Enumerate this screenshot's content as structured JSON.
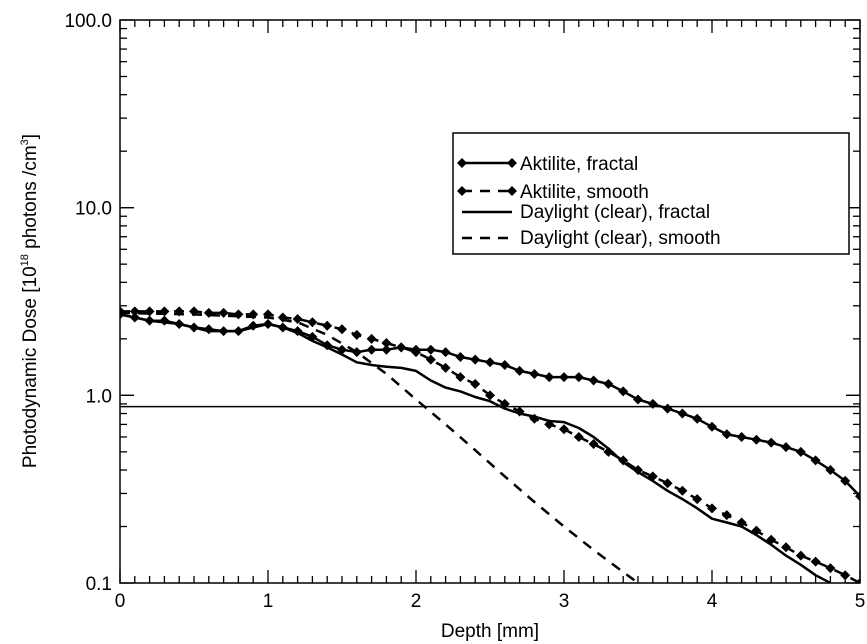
{
  "chart_data": {
    "type": "line",
    "x_axis": {
      "label": "Depth [mm]",
      "range": [
        0,
        5
      ],
      "ticks": [
        0,
        1,
        2,
        3,
        4,
        5
      ],
      "tick_labels": [
        "0",
        "1",
        "2",
        "3",
        "4",
        "5"
      ]
    },
    "y_axis": {
      "label_main": "Photodynamic Dose [10",
      "label_exp1": "18",
      "label_mid": " photons /cm",
      "label_exp2": "3",
      "label_end": "]",
      "scale": "log",
      "range": [
        0.1,
        100
      ],
      "ticks": [
        0.1,
        1,
        10,
        100
      ],
      "tick_labels": [
        "0.1",
        "1.0",
        "10.0",
        "100.0"
      ]
    },
    "threshold_line": 0.87,
    "legend_position": "top-right",
    "series": [
      {
        "name": "Aktilite, fractal",
        "style": "solid-diamond",
        "x": [
          0,
          0.1,
          0.2,
          0.3,
          0.4,
          0.5,
          0.6,
          0.7,
          0.8,
          0.9,
          1.0,
          1.1,
          1.2,
          1.3,
          1.4,
          1.5,
          1.6,
          1.7,
          1.8,
          1.9,
          2.0,
          2.1,
          2.2,
          2.3,
          2.4,
          2.5,
          2.6,
          2.7,
          2.8,
          2.9,
          3.0,
          3.1,
          3.2,
          3.3,
          3.4,
          3.5,
          3.6,
          3.7,
          3.8,
          3.9,
          4.0,
          4.1,
          4.2,
          4.3,
          4.4,
          4.5,
          4.6,
          4.7,
          4.8,
          4.9,
          5.0
        ],
        "y": [
          2.7,
          2.6,
          2.5,
          2.5,
          2.4,
          2.3,
          2.25,
          2.2,
          2.2,
          2.35,
          2.4,
          2.3,
          2.2,
          2.05,
          1.85,
          1.75,
          1.7,
          1.75,
          1.75,
          1.8,
          1.75,
          1.75,
          1.7,
          1.6,
          1.55,
          1.5,
          1.45,
          1.35,
          1.3,
          1.25,
          1.25,
          1.25,
          1.2,
          1.15,
          1.05,
          0.95,
          0.9,
          0.85,
          0.8,
          0.75,
          0.68,
          0.62,
          0.6,
          0.58,
          0.56,
          0.53,
          0.5,
          0.45,
          0.4,
          0.35,
          0.29
        ]
      },
      {
        "name": "Aktilite, smooth",
        "style": "dashed-diamond",
        "x": [
          0,
          0.1,
          0.2,
          0.3,
          0.4,
          0.5,
          0.6,
          0.7,
          0.8,
          0.9,
          1.0,
          1.1,
          1.2,
          1.3,
          1.4,
          1.5,
          1.6,
          1.7,
          1.8,
          1.9,
          2.0,
          2.1,
          2.2,
          2.3,
          2.4,
          2.5,
          2.6,
          2.7,
          2.8,
          2.9,
          3.0,
          3.1,
          3.2,
          3.3,
          3.4,
          3.5,
          3.6,
          3.7,
          3.8,
          3.9,
          4.0,
          4.1,
          4.2,
          4.3,
          4.4,
          4.5,
          4.6,
          4.7,
          4.8,
          4.9,
          5.0
        ],
        "y": [
          2.8,
          2.8,
          2.8,
          2.8,
          2.8,
          2.8,
          2.75,
          2.75,
          2.7,
          2.7,
          2.7,
          2.6,
          2.55,
          2.45,
          2.35,
          2.25,
          2.1,
          2.0,
          1.9,
          1.8,
          1.7,
          1.55,
          1.4,
          1.25,
          1.15,
          1.0,
          0.9,
          0.82,
          0.75,
          0.7,
          0.66,
          0.6,
          0.55,
          0.5,
          0.45,
          0.4,
          0.37,
          0.34,
          0.31,
          0.28,
          0.25,
          0.23,
          0.21,
          0.19,
          0.17,
          0.155,
          0.14,
          0.13,
          0.12,
          0.11,
          0.1
        ]
      },
      {
        "name": "Daylight (clear), fractal",
        "style": "solid",
        "x": [
          0,
          0.2,
          0.4,
          0.6,
          0.8,
          1.0,
          1.1,
          1.2,
          1.3,
          1.4,
          1.5,
          1.6,
          1.7,
          1.8,
          1.9,
          2.0,
          2.1,
          2.2,
          2.3,
          2.4,
          2.5,
          2.6,
          2.7,
          2.8,
          2.9,
          3.0,
          3.1,
          3.2,
          3.3,
          3.4,
          3.5,
          3.6,
          3.7,
          3.8,
          3.9,
          4.0,
          4.1,
          4.2,
          4.3,
          4.4,
          4.5,
          4.6,
          4.7,
          4.8
        ],
        "y": [
          2.7,
          2.5,
          2.4,
          2.2,
          2.2,
          2.4,
          2.3,
          2.15,
          1.95,
          1.8,
          1.65,
          1.5,
          1.45,
          1.42,
          1.4,
          1.35,
          1.2,
          1.1,
          1.05,
          0.98,
          0.93,
          0.85,
          0.8,
          0.77,
          0.73,
          0.72,
          0.67,
          0.6,
          0.52,
          0.44,
          0.39,
          0.35,
          0.31,
          0.28,
          0.25,
          0.22,
          0.21,
          0.2,
          0.18,
          0.16,
          0.14,
          0.125,
          0.11,
          0.1
        ]
      },
      {
        "name": "Daylight (clear), smooth",
        "style": "dashed",
        "x": [
          0,
          0.5,
          1.0,
          1.2,
          1.4,
          1.6,
          1.8,
          2.0,
          2.2,
          2.4,
          2.6,
          2.8,
          3.0,
          3.2,
          3.5
        ],
        "y": [
          2.75,
          2.7,
          2.6,
          2.45,
          2.1,
          1.7,
          1.3,
          0.95,
          0.7,
          0.51,
          0.37,
          0.27,
          0.2,
          0.15,
          0.1
        ]
      }
    ]
  }
}
